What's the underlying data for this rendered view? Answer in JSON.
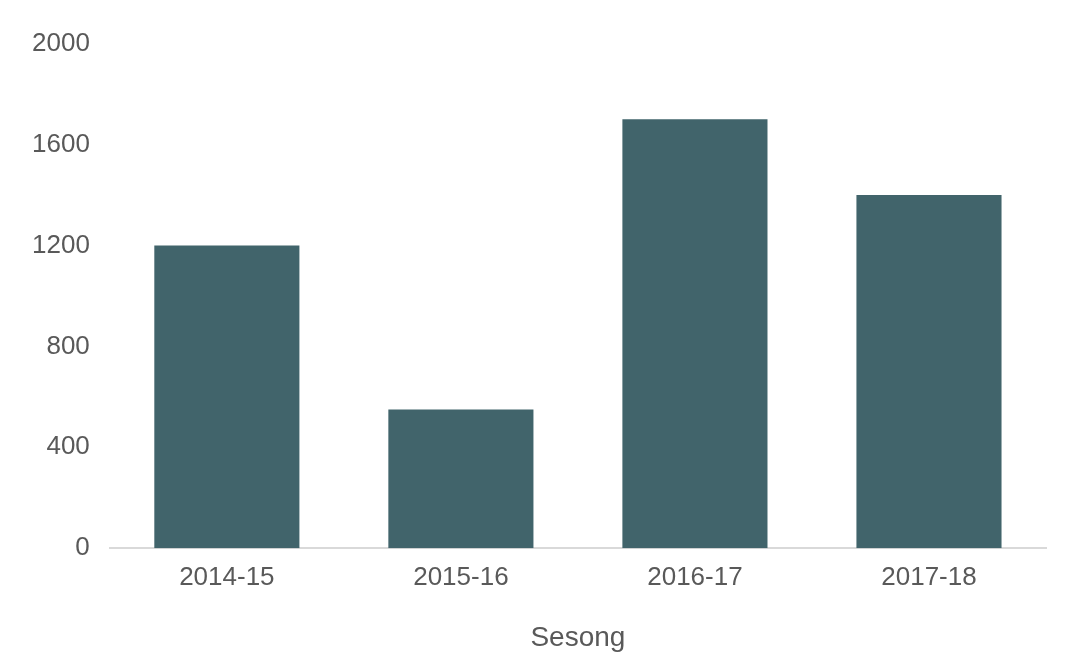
{
  "chart_data": {
    "type": "bar",
    "xlabel": "Sesong",
    "categories": [
      "2014-15",
      "2015-16",
      "2016-17",
      "2017-18"
    ],
    "values": [
      1200,
      550,
      1700,
      1400
    ],
    "color": "#41646b",
    "ylim": [
      0,
      2000
    ],
    "yticks": [
      0,
      400,
      800,
      1200,
      1600,
      2000
    ],
    "grid": false,
    "legend": false
  }
}
